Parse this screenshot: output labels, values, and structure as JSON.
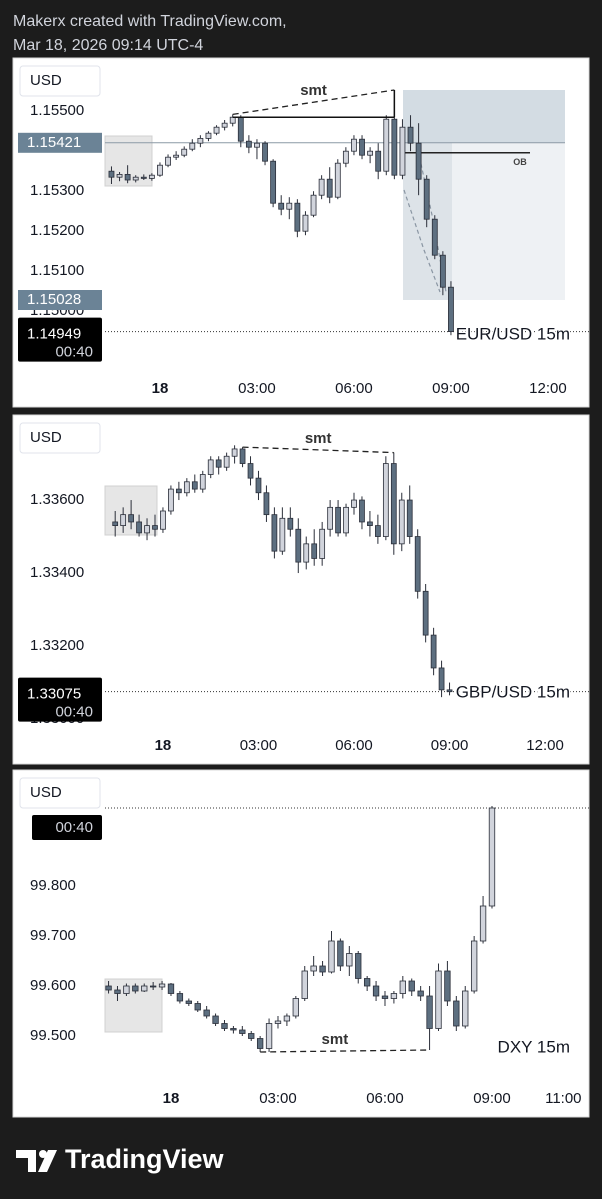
{
  "header": {
    "line1": "Makerx created with TradingView.com,",
    "line2": "Mar 18, 2026 09:14 UTC-4"
  },
  "footer": "TradingView",
  "chart_data": [
    {
      "type": "candlestick",
      "title": "EUR/USD 15m",
      "currency": "USD",
      "countdown": "00:40",
      "smt_label": "smt",
      "zone_label": "OB",
      "up_color": "#d1d4dc",
      "down_color": "#5d6f80",
      "xlim": [
        -1.7,
        13.27
      ],
      "xticks": [
        {
          "value": 0,
          "label": "18"
        },
        {
          "value": 3,
          "label": "03:00"
        },
        {
          "value": 6,
          "label": "06:00"
        },
        {
          "value": 9,
          "label": "09:00"
        },
        {
          "value": 12,
          "label": "12:00"
        }
      ],
      "ylim": [
        1.14848,
        1.15633
      ],
      "yticks": [
        {
          "value": 1.155,
          "label": "1.15500"
        },
        {
          "value": 1.153,
          "label": "1.15300"
        },
        {
          "value": 1.152,
          "label": "1.15200"
        },
        {
          "value": 1.151,
          "label": "1.15100"
        },
        {
          "value": 1.15,
          "label": "1.15000"
        }
      ],
      "price_labels": [
        1.15421,
        1.15028
      ],
      "last_price": 1.14949,
      "candles": [
        [
          -1.5,
          1.1535,
          1.15362,
          1.15318,
          1.15335
        ],
        [
          -1.25,
          1.15335,
          1.15348,
          1.15325,
          1.15342
        ],
        [
          -1,
          1.15342,
          1.15365,
          1.1532,
          1.15328
        ],
        [
          -0.75,
          1.15328,
          1.1534,
          1.15322,
          1.15335
        ],
        [
          -0.5,
          1.15335,
          1.15342,
          1.15328,
          1.15332
        ],
        [
          -0.25,
          1.15332,
          1.15345,
          1.15326,
          1.1534
        ],
        [
          0,
          1.1534,
          1.15372,
          1.15336,
          1.15365
        ],
        [
          0.25,
          1.15365,
          1.15392,
          1.1536,
          1.15385
        ],
        [
          0.5,
          1.15385,
          1.154,
          1.15378,
          1.1539
        ],
        [
          0.75,
          1.1539,
          1.15412,
          1.15385,
          1.15405
        ],
        [
          1,
          1.15405,
          1.1543,
          1.154,
          1.1542
        ],
        [
          1.25,
          1.1542,
          1.1544,
          1.1541,
          1.15432
        ],
        [
          1.5,
          1.15432,
          1.1545,
          1.15425,
          1.15445
        ],
        [
          1.75,
          1.15445,
          1.15465,
          1.1544,
          1.1546
        ],
        [
          2,
          1.1546,
          1.15478,
          1.15452,
          1.1547
        ],
        [
          2.25,
          1.1547,
          1.15492,
          1.15462,
          1.15485
        ],
        [
          2.5,
          1.15485,
          1.1549,
          1.1541,
          1.15425
        ],
        [
          2.75,
          1.15425,
          1.1544,
          1.15395,
          1.1541
        ],
        [
          3,
          1.1541,
          1.1543,
          1.1538,
          1.1542
        ],
        [
          3.25,
          1.1542,
          1.15425,
          1.15365,
          1.15375
        ],
        [
          3.5,
          1.15375,
          1.1538,
          1.1526,
          1.1527
        ],
        [
          3.75,
          1.1527,
          1.1529,
          1.1524,
          1.15255
        ],
        [
          4,
          1.15255,
          1.15285,
          1.1523,
          1.1527
        ],
        [
          4.25,
          1.1527,
          1.1528,
          1.15185,
          1.152
        ],
        [
          4.5,
          1.152,
          1.1525,
          1.1519,
          1.1524
        ],
        [
          4.75,
          1.1524,
          1.153,
          1.15235,
          1.1529
        ],
        [
          5,
          1.1529,
          1.1534,
          1.1528,
          1.1533
        ],
        [
          5.25,
          1.1533,
          1.1536,
          1.1527,
          1.15285
        ],
        [
          5.5,
          1.15285,
          1.1538,
          1.1528,
          1.1537
        ],
        [
          5.75,
          1.1537,
          1.1541,
          1.1536,
          1.154
        ],
        [
          6,
          1.154,
          1.1544,
          1.1539,
          1.1543
        ],
        [
          6.25,
          1.1543,
          1.1544,
          1.1538,
          1.1539
        ],
        [
          6.5,
          1.1539,
          1.1541,
          1.1537,
          1.154
        ],
        [
          6.75,
          1.154,
          1.1542,
          1.1533,
          1.1535
        ],
        [
          7,
          1.1535,
          1.1549,
          1.1534,
          1.1548
        ],
        [
          7.25,
          1.1548,
          1.15553,
          1.1533,
          1.1534
        ],
        [
          7.5,
          1.1534,
          1.1548,
          1.1533,
          1.1546
        ],
        [
          7.75,
          1.1546,
          1.1549,
          1.154,
          1.1542
        ],
        [
          8,
          1.1542,
          1.1547,
          1.1529,
          1.1533
        ],
        [
          8.25,
          1.1533,
          1.1534,
          1.1521,
          1.1523
        ],
        [
          8.5,
          1.1523,
          1.1524,
          1.1513,
          1.1514
        ],
        [
          8.75,
          1.1514,
          1.1515,
          1.1504,
          1.1506
        ],
        [
          9,
          1.1506,
          1.15075,
          1.1494,
          1.14949
        ]
      ]
    },
    {
      "type": "candlestick",
      "title": "GBP/USD 15m",
      "currency": "USD",
      "countdown": "00:40",
      "smt_label": "smt",
      "up_color": "#d1d4dc",
      "down_color": "#5d6f80",
      "xlim": [
        -1.82,
        13.38
      ],
      "xticks": [
        {
          "value": 0,
          "label": "18"
        },
        {
          "value": 3,
          "label": "03:00"
        },
        {
          "value": 6,
          "label": "06:00"
        },
        {
          "value": 9,
          "label": "09:00"
        },
        {
          "value": 12,
          "label": "12:00"
        }
      ],
      "ylim": [
        1.3297,
        1.33833
      ],
      "yticks": [
        {
          "value": 1.336,
          "label": "1.33600"
        },
        {
          "value": 1.334,
          "label": "1.33400"
        },
        {
          "value": 1.332,
          "label": "1.33200"
        },
        {
          "value": 1.33,
          "label": "1.33000"
        }
      ],
      "last_price": 1.33075,
      "candles": [
        [
          -1.5,
          1.3354,
          1.3357,
          1.335,
          1.3353
        ],
        [
          -1.25,
          1.3353,
          1.3358,
          1.3351,
          1.3356
        ],
        [
          -1,
          1.3356,
          1.336,
          1.3352,
          1.3354
        ],
        [
          -0.75,
          1.3354,
          1.3356,
          1.335,
          1.3351
        ],
        [
          -0.5,
          1.3351,
          1.3355,
          1.3349,
          1.3353
        ],
        [
          -0.25,
          1.3353,
          1.3356,
          1.335,
          1.3352
        ],
        [
          0,
          1.3352,
          1.3358,
          1.3351,
          1.3357
        ],
        [
          0.25,
          1.3357,
          1.3364,
          1.3356,
          1.3363
        ],
        [
          0.5,
          1.3363,
          1.3365,
          1.336,
          1.3362
        ],
        [
          0.75,
          1.3362,
          1.3366,
          1.3361,
          1.3365
        ],
        [
          1,
          1.3365,
          1.3367,
          1.3362,
          1.3363
        ],
        [
          1.25,
          1.3363,
          1.3368,
          1.3362,
          1.3367
        ],
        [
          1.5,
          1.3367,
          1.3372,
          1.3366,
          1.3371
        ],
        [
          1.75,
          1.3371,
          1.3372,
          1.3367,
          1.3369
        ],
        [
          2,
          1.3369,
          1.3373,
          1.3368,
          1.3372
        ],
        [
          2.25,
          1.3372,
          1.3375,
          1.337,
          1.3374
        ],
        [
          2.5,
          1.3374,
          1.33745,
          1.3369,
          1.337
        ],
        [
          2.75,
          1.337,
          1.3372,
          1.3364,
          1.3366
        ],
        [
          3,
          1.3366,
          1.3368,
          1.336,
          1.3362
        ],
        [
          3.25,
          1.3362,
          1.3364,
          1.3354,
          1.3356
        ],
        [
          3.5,
          1.3356,
          1.3358,
          1.3344,
          1.3346
        ],
        [
          3.75,
          1.3346,
          1.3358,
          1.3345,
          1.3355
        ],
        [
          4,
          1.3355,
          1.3358,
          1.335,
          1.3352
        ],
        [
          4.25,
          1.3352,
          1.3355,
          1.334,
          1.3343
        ],
        [
          4.5,
          1.3343,
          1.335,
          1.3341,
          1.3348
        ],
        [
          4.75,
          1.3348,
          1.3352,
          1.3342,
          1.3344
        ],
        [
          5,
          1.3344,
          1.3354,
          1.3342,
          1.3352
        ],
        [
          5.25,
          1.3352,
          1.336,
          1.335,
          1.3358
        ],
        [
          5.5,
          1.3358,
          1.336,
          1.335,
          1.3351
        ],
        [
          5.75,
          1.3351,
          1.3359,
          1.335,
          1.3358
        ],
        [
          6,
          1.3358,
          1.3362,
          1.3356,
          1.336
        ],
        [
          6.25,
          1.336,
          1.3361,
          1.3352,
          1.3354
        ],
        [
          6.5,
          1.3354,
          1.3357,
          1.335,
          1.3353
        ],
        [
          6.75,
          1.3353,
          1.3356,
          1.3348,
          1.335
        ],
        [
          7,
          1.335,
          1.3372,
          1.3349,
          1.337
        ],
        [
          7.25,
          1.337,
          1.3373,
          1.3345,
          1.3348
        ],
        [
          7.5,
          1.3348,
          1.3362,
          1.3346,
          1.336
        ],
        [
          7.75,
          1.336,
          1.3364,
          1.3348,
          1.335
        ],
        [
          8,
          1.335,
          1.3352,
          1.3333,
          1.3335
        ],
        [
          8.25,
          1.3335,
          1.3337,
          1.3321,
          1.3323
        ],
        [
          8.5,
          1.3323,
          1.3325,
          1.3312,
          1.3314
        ],
        [
          8.75,
          1.3314,
          1.3316,
          1.3306,
          1.3308
        ],
        [
          9,
          1.3308,
          1.331,
          1.33065,
          1.33075
        ]
      ]
    },
    {
      "type": "candlestick",
      "title": "DXY 15m",
      "currency": "USD",
      "countdown": "00:40",
      "smt_label": "smt",
      "up_color": "#d1d4dc",
      "down_color": "#5d6f80",
      "xlim": [
        -1.85,
        11.72
      ],
      "xticks": [
        {
          "value": 0,
          "label": "18"
        },
        {
          "value": 3,
          "label": "03:00"
        },
        {
          "value": 6,
          "label": "06:00"
        },
        {
          "value": 9,
          "label": "09:00"
        },
        {
          "value": 11,
          "label": "11:00"
        }
      ],
      "ylim": [
        99.402,
        100.032
      ],
      "yticks": [
        {
          "value": 99.8,
          "label": "99.800"
        },
        {
          "value": 99.7,
          "label": "99.700"
        },
        {
          "value": 99.6,
          "label": "99.600"
        },
        {
          "value": 99.5,
          "label": "99.500"
        }
      ],
      "last_price": 99.956,
      "candles": [
        [
          -1.75,
          99.6,
          99.61,
          99.585,
          99.592
        ],
        [
          -1.5,
          99.592,
          99.6,
          99.57,
          99.585
        ],
        [
          -1.25,
          99.585,
          99.605,
          99.58,
          99.6
        ],
        [
          -1,
          99.6,
          99.605,
          99.585,
          99.59
        ],
        [
          -0.75,
          99.59,
          99.605,
          99.588,
          99.6
        ],
        [
          -0.5,
          99.6,
          99.608,
          99.592,
          99.598
        ],
        [
          -0.25,
          99.598,
          99.61,
          99.592,
          99.604
        ],
        [
          0,
          99.604,
          99.606,
          99.58,
          99.585
        ],
        [
          0.25,
          99.585,
          99.59,
          99.565,
          99.57
        ],
        [
          0.5,
          99.57,
          99.575,
          99.56,
          99.565
        ],
        [
          0.75,
          99.565,
          99.57,
          99.548,
          99.552
        ],
        [
          1,
          99.552,
          99.56,
          99.535,
          99.54
        ],
        [
          1.25,
          99.54,
          99.545,
          99.52,
          99.525
        ],
        [
          1.5,
          99.525,
          99.532,
          99.51,
          99.515
        ],
        [
          1.75,
          99.515,
          99.52,
          99.505,
          99.512
        ],
        [
          2,
          99.512,
          99.52,
          99.5,
          99.505
        ],
        [
          2.25,
          99.505,
          99.51,
          99.49,
          99.495
        ],
        [
          2.5,
          99.495,
          99.5,
          99.468,
          99.475
        ],
        [
          2.75,
          99.475,
          99.535,
          99.468,
          99.525
        ],
        [
          3,
          99.525,
          99.54,
          99.515,
          99.53
        ],
        [
          3.25,
          99.53,
          99.545,
          99.52,
          99.54
        ],
        [
          3.5,
          99.54,
          99.58,
          99.535,
          99.575
        ],
        [
          3.75,
          99.575,
          99.64,
          99.57,
          99.63
        ],
        [
          4,
          99.63,
          99.66,
          99.62,
          99.64
        ],
        [
          4.25,
          99.64,
          99.65,
          99.62,
          99.628
        ],
        [
          4.5,
          99.628,
          99.71,
          99.625,
          99.69
        ],
        [
          4.75,
          99.69,
          99.695,
          99.63,
          99.64
        ],
        [
          5,
          99.64,
          99.68,
          99.62,
          99.665
        ],
        [
          5.25,
          99.665,
          99.67,
          99.605,
          99.615
        ],
        [
          5.5,
          99.615,
          99.62,
          99.59,
          99.6
        ],
        [
          5.75,
          99.6,
          99.61,
          99.57,
          99.58
        ],
        [
          6,
          99.58,
          99.59,
          99.56,
          99.575
        ],
        [
          6.25,
          99.575,
          99.59,
          99.565,
          99.585
        ],
        [
          6.5,
          99.585,
          99.62,
          99.575,
          99.61
        ],
        [
          6.75,
          99.61,
          99.615,
          99.58,
          99.59
        ],
        [
          7,
          99.59,
          99.6,
          99.57,
          99.58
        ],
        [
          7.25,
          99.58,
          99.6,
          99.472,
          99.515
        ],
        [
          7.5,
          99.515,
          99.645,
          99.51,
          99.63
        ],
        [
          7.75,
          99.63,
          99.65,
          99.56,
          99.57
        ],
        [
          8,
          99.57,
          99.58,
          99.51,
          99.52
        ],
        [
          8.25,
          99.52,
          99.6,
          99.515,
          99.59
        ],
        [
          8.5,
          99.59,
          99.7,
          99.585,
          99.69
        ],
        [
          8.75,
          99.69,
          99.78,
          99.685,
          99.76
        ],
        [
          9,
          99.76,
          99.96,
          99.755,
          99.956
        ]
      ]
    }
  ]
}
